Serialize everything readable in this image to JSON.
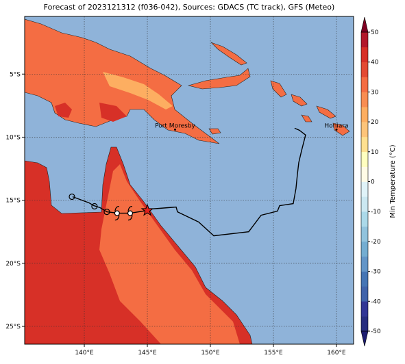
{
  "title": "Forecast of 2023121312 (f036-042), Sources: GDACS (TC track), GFS (Meteo)",
  "map": {
    "xlim": [
      135.27,
      161.36
    ],
    "ylim": [
      -26.41,
      -0.43
    ],
    "xticks": [
      {
        "value": 140,
        "label": "140°E"
      },
      {
        "value": 145,
        "label": "145°E"
      },
      {
        "value": 150,
        "label": "150°E"
      },
      {
        "value": 155,
        "label": "155°E"
      },
      {
        "value": 160,
        "label": "160°E"
      }
    ],
    "yticks": [
      {
        "value": -5,
        "label": "5°S"
      },
      {
        "value": -10,
        "label": "10°S"
      },
      {
        "value": -15,
        "label": "15°S"
      },
      {
        "value": -20,
        "label": "20°S"
      },
      {
        "value": -25,
        "label": "25°S"
      }
    ],
    "places": [
      {
        "name": "Port Moresby",
        "lon": 147.2,
        "lat": -9.4
      },
      {
        "name": "Honiara",
        "lon": 160.0,
        "lat": -9.4
      }
    ],
    "track": {
      "lon": [
        156.68,
        157.06,
        157.55,
        157.23,
        157.01,
        156.9,
        156.79,
        156.57,
        155.49,
        155.32,
        154.02,
        153.04,
        150.27,
        149.07,
        147.39,
        147.28,
        145.27,
        145.0,
        143.64,
        142.66,
        141.79,
        141.25,
        140.76,
        140.38,
        139.07
      ],
      "lat": [
        -9.29,
        -9.45,
        -9.83,
        -11.08,
        -12.01,
        -12.98,
        -14.07,
        -15.27,
        -15.43,
        -15.86,
        -16.19,
        -17.5,
        -17.82,
        -16.73,
        -15.92,
        -15.54,
        -15.7,
        -15.81,
        -16.03,
        -16.03,
        -15.92,
        -15.59,
        -15.43,
        -15.21,
        -14.72
      ]
    },
    "markers": [
      {
        "symbol": "circle",
        "lon": 139.02,
        "lat": -14.72
      },
      {
        "symbol": "circle",
        "lon": 140.81,
        "lat": -15.48
      },
      {
        "symbol": "circle",
        "lon": 141.79,
        "lat": -15.92
      },
      {
        "symbol": "storm",
        "lon": 142.6,
        "lat": -16.03
      },
      {
        "symbol": "storm",
        "lon": 143.64,
        "lat": -16.03
      },
      {
        "symbol": "star",
        "lon": 145.0,
        "lat": -15.81
      }
    ]
  },
  "colorbar": {
    "label": "Min Temperature (°C)",
    "lim": [
      -50,
      50
    ],
    "ticks": [
      -50,
      -40,
      -30,
      -20,
      -10,
      0,
      10,
      20,
      30,
      40,
      50
    ],
    "colors": [
      "#262d7f",
      "#313695",
      "#4063aa",
      "#4575b4",
      "#6395c7",
      "#74add1",
      "#91c3dd",
      "#abd9e9",
      "#cbe8f1",
      "#e0f3f8",
      "#fffbe6",
      "#ffffbf",
      "#fee090",
      "#fdc47a",
      "#fdae61",
      "#f88d52",
      "#f46d43",
      "#e34a33",
      "#d73027",
      "#b2182b"
    ],
    "under": "#1c1c70",
    "over": "#7f0022"
  }
}
